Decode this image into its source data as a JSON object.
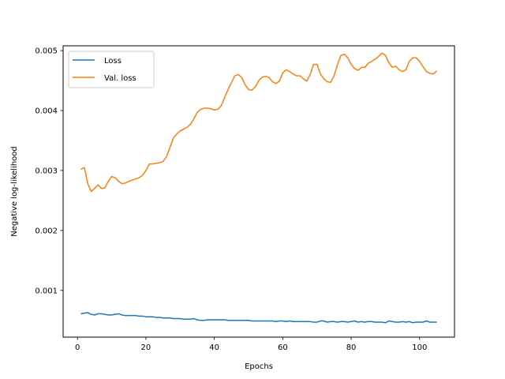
{
  "chart_data": {
    "type": "line",
    "title": "",
    "xlabel": "Epochs",
    "ylabel": "Negative log-likelihood",
    "xlim": [
      -4.2,
      110.2
    ],
    "ylim": [
      0.00022,
      0.00508
    ],
    "x_ticks": [
      0,
      20,
      40,
      60,
      80,
      100
    ],
    "x_tick_labels": [
      "0",
      "20",
      "40",
      "60",
      "80",
      "100"
    ],
    "y_ticks": [
      0.001,
      0.002,
      0.003,
      0.004,
      0.005
    ],
    "y_tick_labels": [
      "0.001",
      "0.002",
      "0.003",
      "0.004",
      "0.005"
    ],
    "grid": false,
    "legend_position": "top-left",
    "x": [
      1,
      2,
      3,
      4,
      5,
      6,
      7,
      8,
      9,
      10,
      11,
      12,
      13,
      14,
      15,
      16,
      17,
      18,
      19,
      20,
      21,
      22,
      23,
      24,
      25,
      26,
      27,
      28,
      29,
      30,
      31,
      32,
      33,
      34,
      35,
      36,
      37,
      38,
      39,
      40,
      41,
      42,
      43,
      44,
      45,
      46,
      47,
      48,
      49,
      50,
      51,
      52,
      53,
      54,
      55,
      56,
      57,
      58,
      59,
      60,
      61,
      62,
      63,
      64,
      65,
      66,
      67,
      68,
      69,
      70,
      71,
      72,
      73,
      74,
      75,
      76,
      77,
      78,
      79,
      80,
      81,
      82,
      83,
      84,
      85,
      86,
      87,
      88,
      89,
      90,
      91,
      92,
      93,
      94,
      95,
      96,
      97,
      98,
      99,
      100,
      101,
      102,
      103,
      104,
      105
    ],
    "series": [
      {
        "name": "Loss",
        "color": "#1f77b4",
        "values": [
          0.00061,
          0.00062,
          0.00063,
          0.0006,
          0.00059,
          0.00061,
          0.00061,
          0.0006,
          0.00059,
          0.00059,
          0.0006,
          0.00061,
          0.00059,
          0.00058,
          0.00058,
          0.00058,
          0.00058,
          0.00057,
          0.00057,
          0.00056,
          0.00056,
          0.00056,
          0.00055,
          0.00055,
          0.00054,
          0.00054,
          0.00054,
          0.00053,
          0.00053,
          0.00053,
          0.00052,
          0.00052,
          0.00052,
          0.00053,
          0.00051,
          0.0005,
          0.0005,
          0.00051,
          0.00051,
          0.00051,
          0.00051,
          0.00051,
          0.00051,
          0.0005,
          0.0005,
          0.0005,
          0.0005,
          0.0005,
          0.0005,
          0.0005,
          0.00049,
          0.00049,
          0.00049,
          0.00049,
          0.00049,
          0.00049,
          0.00049,
          0.00048,
          0.00049,
          0.00049,
          0.00048,
          0.00049,
          0.00048,
          0.00048,
          0.00048,
          0.00048,
          0.00048,
          0.00048,
          0.00047,
          0.00047,
          0.00049,
          0.00049,
          0.00047,
          0.00048,
          0.00048,
          0.00047,
          0.00048,
          0.00048,
          0.00047,
          0.00048,
          0.00049,
          0.00047,
          0.00048,
          0.00047,
          0.00048,
          0.00048,
          0.00047,
          0.00047,
          0.00047,
          0.00046,
          0.00049,
          0.00048,
          0.00047,
          0.00047,
          0.00048,
          0.00047,
          0.00048,
          0.00046,
          0.00047,
          0.00047,
          0.00047,
          0.00049,
          0.00047,
          0.00047,
          0.00047
        ]
      },
      {
        "name": "Val. loss",
        "color": "#ff7f0e",
        "values": [
          0.00302,
          0.00305,
          0.00278,
          0.00265,
          0.0027,
          0.00276,
          0.0027,
          0.00271,
          0.00282,
          0.0029,
          0.00288,
          0.00282,
          0.00278,
          0.00279,
          0.00282,
          0.00284,
          0.00286,
          0.00288,
          0.00292,
          0.003,
          0.00311,
          0.00311,
          0.00312,
          0.00313,
          0.00315,
          0.00323,
          0.00338,
          0.00354,
          0.00361,
          0.00366,
          0.00369,
          0.00372,
          0.00377,
          0.00386,
          0.00397,
          0.00402,
          0.00404,
          0.00404,
          0.00403,
          0.00401,
          0.00402,
          0.00408,
          0.00422,
          0.00435,
          0.00447,
          0.00458,
          0.0046,
          0.00455,
          0.00443,
          0.00435,
          0.00434,
          0.0044,
          0.0045,
          0.00456,
          0.00457,
          0.00455,
          0.00448,
          0.00445,
          0.00449,
          0.00463,
          0.00468,
          0.00465,
          0.00461,
          0.00458,
          0.00458,
          0.00453,
          0.00449,
          0.0046,
          0.00477,
          0.00477,
          0.00461,
          0.00453,
          0.00448,
          0.00447,
          0.00458,
          0.00477,
          0.00492,
          0.00494,
          0.00488,
          0.00477,
          0.0047,
          0.00467,
          0.00472,
          0.00472,
          0.00479,
          0.00482,
          0.00486,
          0.0049,
          0.00496,
          0.00492,
          0.0048,
          0.00472,
          0.00474,
          0.00468,
          0.00465,
          0.00468,
          0.00482,
          0.00488,
          0.00488,
          0.00482,
          0.00473,
          0.00465,
          0.00462,
          0.00461,
          0.00466
        ]
      }
    ]
  }
}
